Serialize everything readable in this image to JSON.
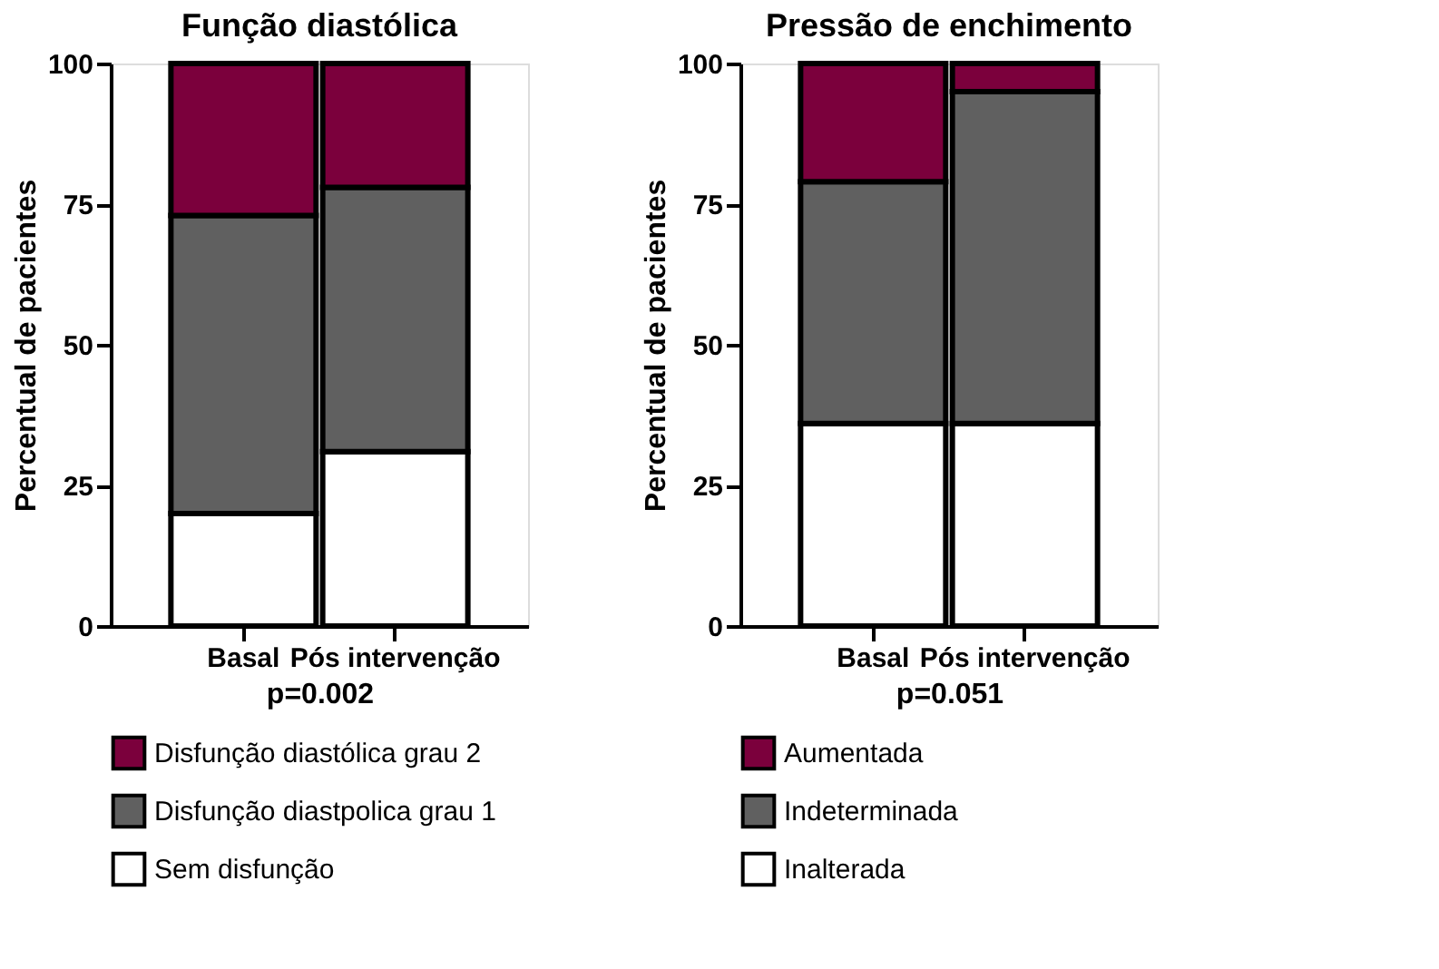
{
  "chart_data": [
    {
      "type": "bar",
      "title": "Função diastólica",
      "ylabel": "Percentual de pacientes",
      "categories": [
        "Basal",
        "Pós intervenção"
      ],
      "stacked": true,
      "ylim": [
        0,
        100
      ],
      "yticks": [
        0,
        25,
        50,
        75,
        100
      ],
      "grid": false,
      "legend": "bottom",
      "annotations": [
        "p=0.002"
      ],
      "series": [
        {
          "name": "Sem disfunção",
          "color": "#ffffff",
          "values": [
            20,
            31
          ]
        },
        {
          "name": "Disfunção diastpolica grau 1",
          "color": "#606060",
          "values": [
            53,
            47
          ]
        },
        {
          "name": "Disfunção diastólica grau 2",
          "color": "#7b003c",
          "values": [
            27,
            22
          ]
        }
      ]
    },
    {
      "type": "bar",
      "title": "Pressão de enchimento",
      "ylabel": "Percentual de pacientes",
      "categories": [
        "Basal",
        "Pós intervenção"
      ],
      "stacked": true,
      "ylim": [
        0,
        100
      ],
      "yticks": [
        0,
        25,
        50,
        75,
        100
      ],
      "grid": false,
      "legend": "bottom",
      "annotations": [
        "p=0.051"
      ],
      "series": [
        {
          "name": "Inalterada",
          "color": "#ffffff",
          "values": [
            36,
            36
          ]
        },
        {
          "name": "Indeterminada",
          "color": "#606060",
          "values": [
            43,
            59
          ]
        },
        {
          "name": "Aumentada",
          "color": "#7b003c",
          "values": [
            21,
            5
          ]
        }
      ]
    }
  ]
}
